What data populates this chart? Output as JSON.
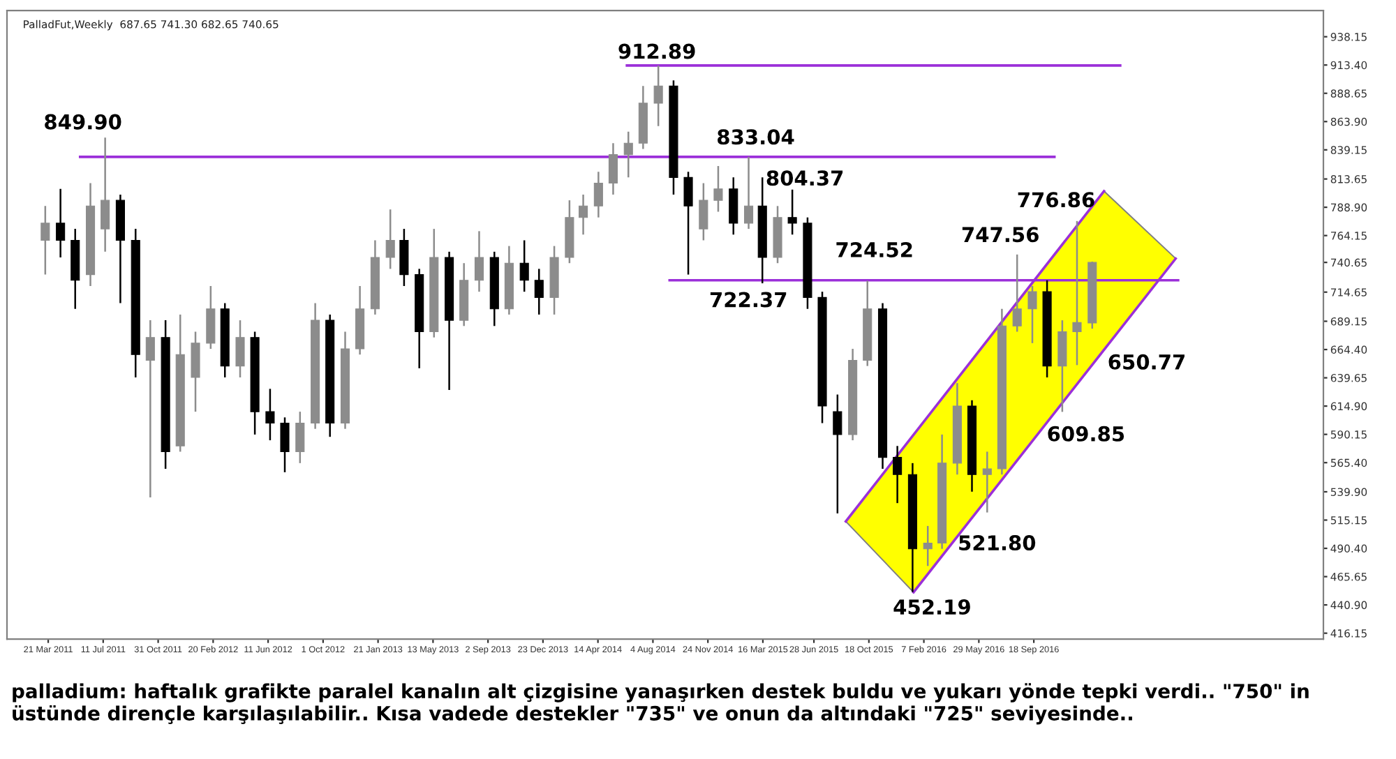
{
  "chart_data": {
    "type": "candlestick",
    "subtitle": "PalladFut,Weekly  687.65 741.30 682.65 740.65",
    "x": [
      "2011-03-15",
      "2011-04-15",
      "2011-05-15",
      "2011-06-15",
      "2011-07-15",
      "2011-08-15",
      "2011-09-15",
      "2011-10-15",
      "2011-11-15",
      "2011-12-15",
      "2012-01-15",
      "2012-02-15",
      "2012-03-15",
      "2012-04-15",
      "2012-05-15",
      "2012-06-15",
      "2012-07-15",
      "2012-08-15",
      "2012-09-15",
      "2012-10-15",
      "2012-11-15",
      "2012-12-15",
      "2013-01-15",
      "2013-02-15",
      "2013-03-15",
      "2013-04-15",
      "2013-05-15",
      "2013-06-15",
      "2013-07-15",
      "2013-08-15",
      "2013-09-15",
      "2013-10-15",
      "2013-11-15",
      "2013-12-15",
      "2014-01-15",
      "2014-02-15",
      "2014-03-15",
      "2014-04-15",
      "2014-05-15",
      "2014-06-15",
      "2014-07-15",
      "2014-08-15",
      "2014-09-15",
      "2014-10-15",
      "2014-11-15",
      "2014-12-15",
      "2015-01-15",
      "2015-02-15",
      "2015-03-15",
      "2015-04-15",
      "2015-05-15",
      "2015-06-15",
      "2015-07-15",
      "2015-08-15",
      "2015-09-15",
      "2015-10-15",
      "2015-11-15",
      "2015-12-15",
      "2016-01-15",
      "2016-02-15",
      "2016-03-15",
      "2016-04-15",
      "2016-05-15",
      "2016-06-15",
      "2016-07-15",
      "2016-08-15",
      "2016-09-15",
      "2016-10-15",
      "2016-11-15",
      "2016-12-15",
      "2017-01-15"
    ],
    "ohlc": [
      [
        760,
        790,
        730,
        775
      ],
      [
        775,
        805,
        745,
        760
      ],
      [
        760,
        770,
        700,
        725
      ],
      [
        730,
        810,
        720,
        790
      ],
      [
        770,
        849.9,
        750,
        795
      ],
      [
        795,
        800,
        705,
        760
      ],
      [
        760,
        770,
        640,
        660
      ],
      [
        655,
        690,
        535,
        675
      ],
      [
        675,
        690,
        560,
        575
      ],
      [
        580,
        695,
        575,
        660
      ],
      [
        640,
        680,
        610,
        670
      ],
      [
        670,
        720,
        665,
        700
      ],
      [
        700,
        705,
        640,
        650
      ],
      [
        650,
        690,
        640,
        675
      ],
      [
        675,
        680,
        590,
        610
      ],
      [
        610,
        630,
        585,
        600
      ],
      [
        600,
        605,
        557,
        575
      ],
      [
        575,
        610,
        565,
        600
      ],
      [
        600,
        705,
        595,
        690
      ],
      [
        690,
        695,
        588,
        600
      ],
      [
        600,
        680,
        595,
        665
      ],
      [
        665,
        720,
        660,
        700
      ],
      [
        700,
        760,
        695,
        745
      ],
      [
        745,
        787,
        735,
        760
      ],
      [
        760,
        770,
        720,
        730
      ],
      [
        730,
        735,
        648,
        680
      ],
      [
        680,
        770,
        675,
        745
      ],
      [
        745,
        750,
        629,
        690
      ],
      [
        690,
        740,
        685,
        725
      ],
      [
        725,
        768,
        715,
        745
      ],
      [
        745,
        750,
        685,
        700
      ],
      [
        700,
        755,
        695,
        740
      ],
      [
        740,
        760,
        715,
        725
      ],
      [
        725,
        735,
        695,
        710
      ],
      [
        710,
        755,
        695,
        745
      ],
      [
        745,
        795,
        740,
        780
      ],
      [
        780,
        800,
        765,
        790
      ],
      [
        790,
        820,
        780,
        810
      ],
      [
        810,
        845,
        800,
        835
      ],
      [
        835,
        855,
        815,
        845
      ],
      [
        845,
        895,
        840,
        880
      ],
      [
        880,
        912.89,
        860,
        895
      ],
      [
        895,
        900,
        800,
        815
      ],
      [
        815,
        820,
        730,
        790
      ],
      [
        770,
        810,
        760,
        795
      ],
      [
        795,
        825,
        785,
        805
      ],
      [
        805,
        815,
        765,
        775
      ],
      [
        775,
        833.04,
        770,
        790
      ],
      [
        790,
        815,
        722.37,
        745
      ],
      [
        745,
        790,
        740,
        780
      ],
      [
        780,
        804.37,
        765,
        775
      ],
      [
        775,
        780,
        700,
        710
      ],
      [
        710,
        715,
        600,
        615
      ],
      [
        610,
        625,
        521,
        590
      ],
      [
        590,
        665,
        585,
        655
      ],
      [
        655,
        724.52,
        650,
        700
      ],
      [
        700,
        705,
        560,
        570
      ],
      [
        570,
        580,
        530,
        555
      ],
      [
        555,
        565,
        452.19,
        490
      ],
      [
        490,
        510,
        475,
        495
      ],
      [
        495,
        590,
        490,
        565
      ],
      [
        565,
        635,
        555,
        615
      ],
      [
        615,
        620,
        540,
        555
      ],
      [
        555,
        575,
        521.8,
        560
      ],
      [
        560,
        700,
        555,
        685
      ],
      [
        685,
        747.56,
        680,
        700
      ],
      [
        700,
        720,
        670,
        715
      ],
      [
        715,
        725,
        640,
        650
      ],
      [
        650,
        690,
        609.85,
        680
      ],
      [
        680,
        776.86,
        650.77,
        688
      ],
      [
        687.65,
        741.3,
        682.65,
        740.65
      ]
    ],
    "series": [
      {
        "type": "area",
        "color": "#ffff00",
        "x": [
          "2015-09-01",
          "2017-02-08",
          "2017-07-04",
          "2016-01-17"
        ],
        "values": [
          514,
          803,
          744,
          452
        ]
      },
      {
        "type": "line",
        "color": "#9b30d9",
        "x": [
          "2014-06-12",
          "2017-03-13"
        ],
        "values": [
          913,
          913
        ]
      },
      {
        "type": "line",
        "color": "#9b30d9",
        "x": [
          "2011-05-25",
          "2016-10-30"
        ],
        "values": [
          833,
          833
        ]
      },
      {
        "type": "line",
        "color": "#9b30d9",
        "x": [
          "2014-09-07",
          "2017-07-09"
        ],
        "values": [
          725,
          725
        ]
      },
      {
        "type": "line",
        "color": "#9b30d9",
        "x": [
          "2015-09-01",
          "2017-02-08"
        ],
        "values": [
          514,
          803
        ]
      },
      {
        "type": "line",
        "color": "#9b30d9",
        "x": [
          "2016-01-17",
          "2017-07-04"
        ],
        "values": [
          452,
          744
        ]
      }
    ],
    "xlim": [
      "2010-12-27",
      "2018-05-01"
    ],
    "xticks": [
      {
        "value": "2011-03-21",
        "label": "21 Mar 2011"
      },
      {
        "value": "2011-07-11",
        "label": "11 Jul 2011"
      },
      {
        "value": "2011-10-31",
        "label": "31 Oct 2011"
      },
      {
        "value": "2012-02-20",
        "label": "20 Feb 2012"
      },
      {
        "value": "2012-06-11",
        "label": "11 Jun 2012"
      },
      {
        "value": "2012-10-01",
        "label": "1 Oct 2012"
      },
      {
        "value": "2013-01-21",
        "label": "21 Jan 2013"
      },
      {
        "value": "2013-05-13",
        "label": "13 May 2013"
      },
      {
        "value": "2013-09-02",
        "label": "2 Sep 2013"
      },
      {
        "value": "2013-12-23",
        "label": "23 Dec 2013"
      },
      {
        "value": "2014-04-14",
        "label": "14 Apr 2014"
      },
      {
        "value": "2014-08-04",
        "label": "4 Aug 2014"
      },
      {
        "value": "2014-11-24",
        "label": "24 Nov 2014"
      },
      {
        "value": "2015-03-16",
        "label": "16 Mar 2015"
      },
      {
        "value": "2015-06-28",
        "label": "28 Jun 2015"
      },
      {
        "value": "2015-10-18",
        "label": "18 Oct 2015"
      },
      {
        "value": "2016-02-07",
        "label": "7 Feb 2016"
      },
      {
        "value": "2016-05-29",
        "label": "29 May 2016"
      },
      {
        "value": "2016-09-18",
        "label": "18 Sep 2016"
      }
    ],
    "ylim": [
      411,
      961
    ],
    "yticks": [
      {
        "value": 938.15,
        "label": "938.15"
      },
      {
        "value": 913.4,
        "label": "913.40"
      },
      {
        "value": 888.65,
        "label": "888.65"
      },
      {
        "value": 863.9,
        "label": "863.90"
      },
      {
        "value": 839.15,
        "label": "839.15"
      },
      {
        "value": 813.65,
        "label": "813.65"
      },
      {
        "value": 788.9,
        "label": "788.90"
      },
      {
        "value": 764.15,
        "label": "764.15"
      },
      {
        "value": 740.65,
        "label": "740.65"
      },
      {
        "value": 714.65,
        "label": "714.65"
      },
      {
        "value": 689.15,
        "label": "689.15"
      },
      {
        "value": 664.4,
        "label": "664.40"
      },
      {
        "value": 639.65,
        "label": "639.65"
      },
      {
        "value": 614.9,
        "label": "614.90"
      },
      {
        "value": 590.15,
        "label": "590.15"
      },
      {
        "value": 565.4,
        "label": "565.40"
      },
      {
        "value": 539.9,
        "label": "539.90"
      },
      {
        "value": 515.15,
        "label": "515.15"
      },
      {
        "value": 490.4,
        "label": "490.40"
      },
      {
        "value": 465.65,
        "label": "465.65"
      },
      {
        "value": 440.9,
        "label": "440.90"
      },
      {
        "value": 416.15,
        "label": "416.15"
      }
    ],
    "grid": false,
    "legend": false,
    "annotations": [
      {
        "text": "849.90",
        "x": "2011-07-15",
        "y": 849.9
      },
      {
        "text": "912.89",
        "x": "2014-08-15",
        "y": 912.89
      },
      {
        "text": "833.04",
        "x": "2015-02-15",
        "y": 833.04
      },
      {
        "text": "804.37",
        "x": "2015-05-15",
        "y": 804.37
      },
      {
        "text": "722.37",
        "x": "2015-03-15",
        "y": 722.37
      },
      {
        "text": "724.52",
        "x": "2015-10-15",
        "y": 724.52
      },
      {
        "text": "747.56",
        "x": "2016-08-15",
        "y": 747.56
      },
      {
        "text": "776.86",
        "x": "2016-12-15",
        "y": 776.86
      },
      {
        "text": "650.77",
        "x": "2016-12-15",
        "y": 650.77
      },
      {
        "text": "609.85",
        "x": "2016-11-15",
        "y": 609.85
      },
      {
        "text": "521.80",
        "x": "2016-06-15",
        "y": 521.8
      },
      {
        "text": "452.19",
        "x": "2016-01-15",
        "y": 452.19
      },
      "palladium: haftalık grafikte paralel kanalın alt çizgisine yanaşırken destek buldu ve yukarı yönde tepki verdi.. \"750\" in üstünde dirençle karşılaşılabilir.. Kısa vadede destekler \"735\" ve onun da altındaki \"725\" seviyesinde.."
    ]
  }
}
